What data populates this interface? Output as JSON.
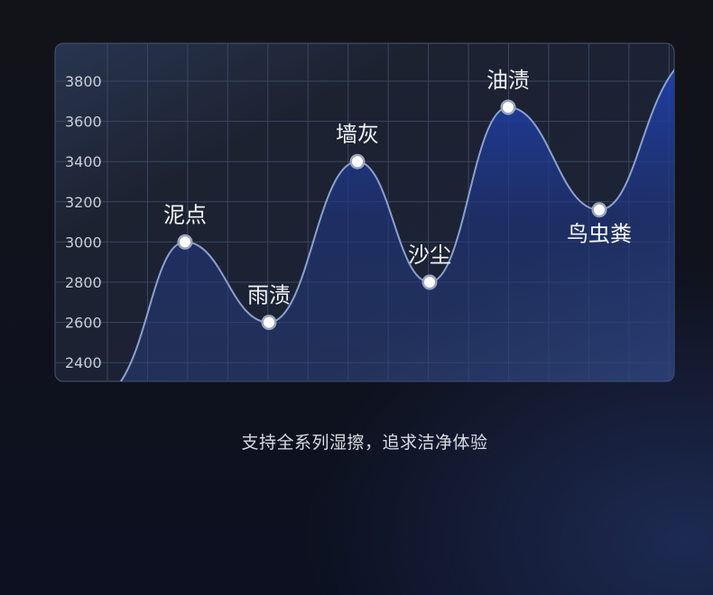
{
  "chart_data": {
    "type": "line",
    "title": "",
    "xlabel": "",
    "ylabel": "",
    "ylim": [
      2300,
      3900
    ],
    "yticks": [
      2400,
      2600,
      2800,
      3000,
      3200,
      3400,
      3600,
      3800
    ],
    "grid": true,
    "fill": "area",
    "points": [
      {
        "label": "泥点",
        "value": 3000
      },
      {
        "label": "雨渍",
        "value": 2600
      },
      {
        "label": "墙灰",
        "value": 3400
      },
      {
        "label": "沙尘",
        "value": 2800
      },
      {
        "label": "油渍",
        "value": 3670
      },
      {
        "label": "鸟虫粪",
        "value": 3160
      }
    ],
    "colors": {
      "line": "#8aa0d0",
      "fill": "#1e3a9a",
      "marker": "#ffffff"
    }
  },
  "caption": "支持全系列湿擦，追求洁净体验"
}
